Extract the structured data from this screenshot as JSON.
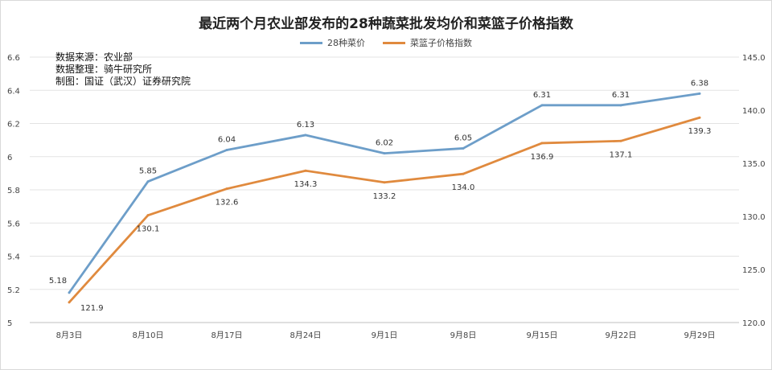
{
  "chart_data": {
    "type": "line",
    "title": "最近两个月农业部发布的28种蔬菜批发均价和菜篮子价格指数",
    "categories": [
      "8月3日",
      "8月10日",
      "8月17日",
      "8月24日",
      "9月1日",
      "9月8日",
      "9月15日",
      "9月22日",
      "9月29日"
    ],
    "series": [
      {
        "name": "28种菜价",
        "axis": "left",
        "color": "#6d9ec9",
        "values": [
          5.18,
          5.85,
          6.04,
          6.13,
          6.02,
          6.05,
          6.31,
          6.31,
          6.38
        ],
        "labels": [
          "5.18",
          "5.85",
          "6.04",
          "6.13",
          "6.02",
          "6.05",
          "6.31",
          "6.31",
          "6.38"
        ]
      },
      {
        "name": "菜篮子价格指数",
        "axis": "right",
        "color": "#e08a3e",
        "values": [
          121.9,
          130.1,
          132.6,
          134.3,
          133.2,
          134.0,
          136.9,
          137.1,
          139.3
        ],
        "labels": [
          "121.9",
          "130.1",
          "132.6",
          "134.3",
          "133.2",
          "134.0",
          "136.9",
          "137.1",
          "139.3"
        ]
      }
    ],
    "y_left": {
      "min": 5,
      "max": 6.6,
      "ticks": [
        "5",
        "5.2",
        "5.4",
        "5.6",
        "5.8",
        "6",
        "6.2",
        "6.4",
        "6.6"
      ]
    },
    "y_right": {
      "min": 120,
      "max": 145,
      "ticks": [
        "120.0",
        "125.0",
        "130.0",
        "135.0",
        "140.0",
        "145.0"
      ]
    },
    "grid": true,
    "legend_position": "top-center"
  },
  "notes": [
    "数据来源：农业部",
    "数据整理：骑牛研究所",
    "制图：国证（武汉）证券研究院"
  ]
}
